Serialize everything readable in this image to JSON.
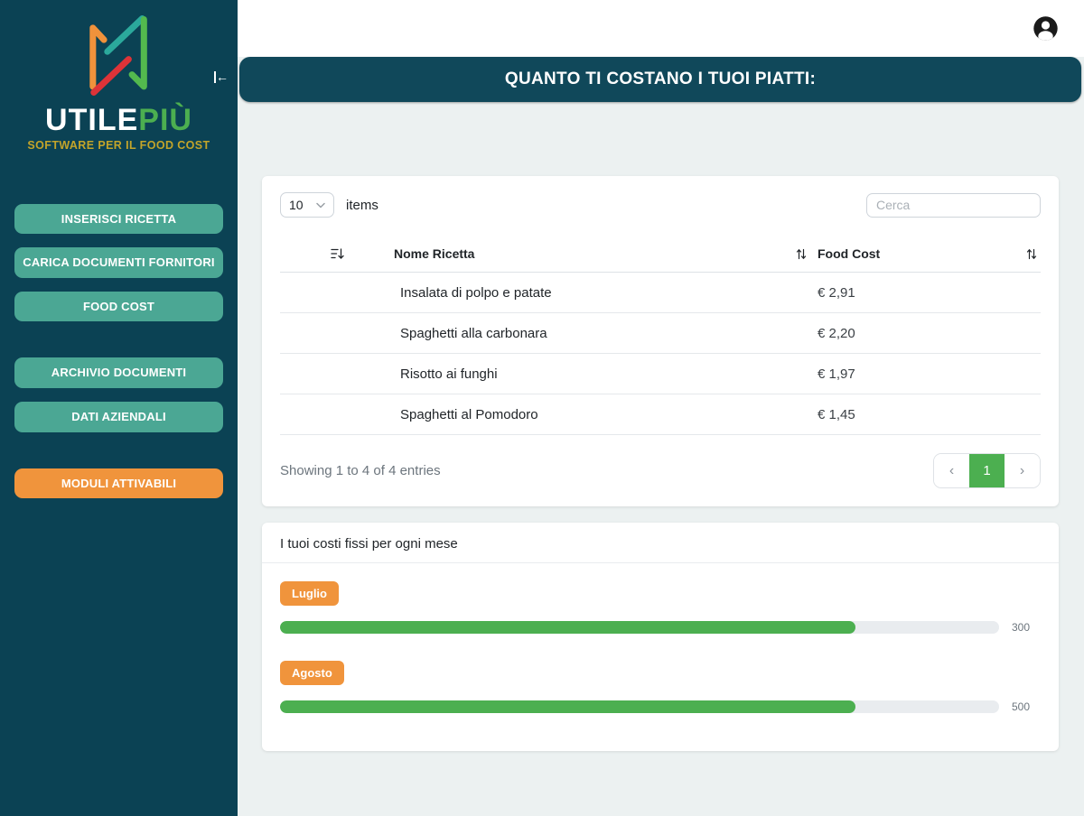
{
  "colors": {
    "sidebar_bg": "#0B4254",
    "banner_bg": "#10485A",
    "accent_teal": "#4BA794",
    "accent_orange": "#F0943C",
    "accent_green": "#4CAF50",
    "tagline_gold": "#C3A42A"
  },
  "sidebar": {
    "logo": {
      "word": "UTILE",
      "word_accent": "PIÙ",
      "tagline": "SOFTWARE PER IL FOOD COST"
    },
    "items": [
      {
        "label": "INSERISCI RICETTA"
      },
      {
        "label": "CARICA DOCUMENTI FORNITORI"
      },
      {
        "label": "FOOD COST"
      },
      {
        "label": "ARCHIVIO DOCUMENTI"
      },
      {
        "label": "DATI AZIENDALI"
      },
      {
        "label": "MODULI ATTIVABILI"
      }
    ]
  },
  "header": {
    "title": "QUANTO TI COSTANO I TUOI PIATTI:"
  },
  "recipes_card": {
    "page_size": "10",
    "items_label": "items",
    "search_placeholder": "Cerca",
    "columns": {
      "name": "Nome Ricetta",
      "cost": "Food Cost"
    },
    "rows": [
      {
        "name": "Insalata di polpo e patate",
        "cost": "€ 2,91"
      },
      {
        "name": "Spaghetti alla carbonara",
        "cost": "€ 2,20"
      },
      {
        "name": "Risotto ai funghi",
        "cost": "€ 1,97"
      },
      {
        "name": "Spaghetti al Pomodoro",
        "cost": "€ 1,45"
      }
    ],
    "footer_text": "Showing 1 to 4 of 4 entries",
    "pagination": {
      "prev": "‹",
      "current": "1",
      "next": "›"
    }
  },
  "fixed_costs_card": {
    "title": "I tuoi costi fissi per ogni mese",
    "months": [
      {
        "label": "Luglio",
        "value": "300",
        "percent": 80
      },
      {
        "label": "Agosto",
        "value": "500",
        "percent": 80
      }
    ]
  }
}
